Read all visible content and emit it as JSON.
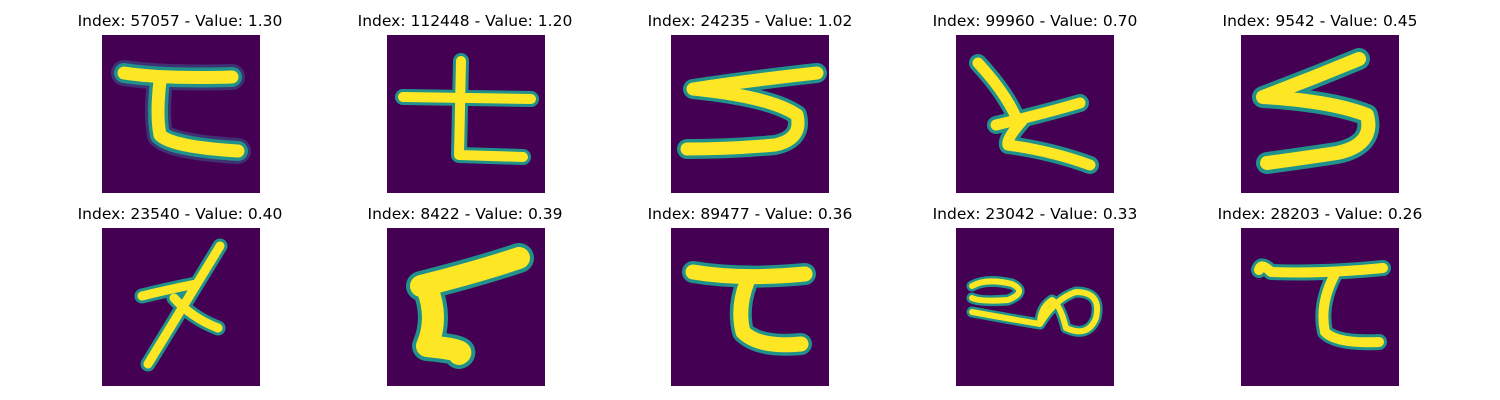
{
  "colors": {
    "background": "#440154",
    "stroke": "#fde725",
    "edge": "#21918c",
    "edge_outer": "#3b528b"
  },
  "panels": [
    {
      "title": "Index: 57057 - Value: 1.30",
      "glyph": "ta-shape"
    },
    {
      "title": "Index: 112448 - Value: 1.20",
      "glyph": "ta-cross-shape"
    },
    {
      "title": "Index: 24235 - Value: 1.02",
      "glyph": "five-shape"
    },
    {
      "title": "Index: 99960 - Value: 0.70",
      "glyph": "ko-shape"
    },
    {
      "title": "Index: 9542 - Value: 0.45",
      "glyph": "five-shape"
    },
    {
      "title": "Index: 23540 - Value: 0.40",
      "glyph": "stick-shape"
    },
    {
      "title": "Index: 8422 - Value: 0.39",
      "glyph": "ta-thick-shape"
    },
    {
      "title": "Index: 89477 - Value: 0.36",
      "glyph": "ta-shape"
    },
    {
      "title": "Index: 23042 - Value: 0.33",
      "glyph": "loops-shape"
    },
    {
      "title": "Index: 28203 - Value: 0.26",
      "glyph": "ta-shape"
    }
  ]
}
